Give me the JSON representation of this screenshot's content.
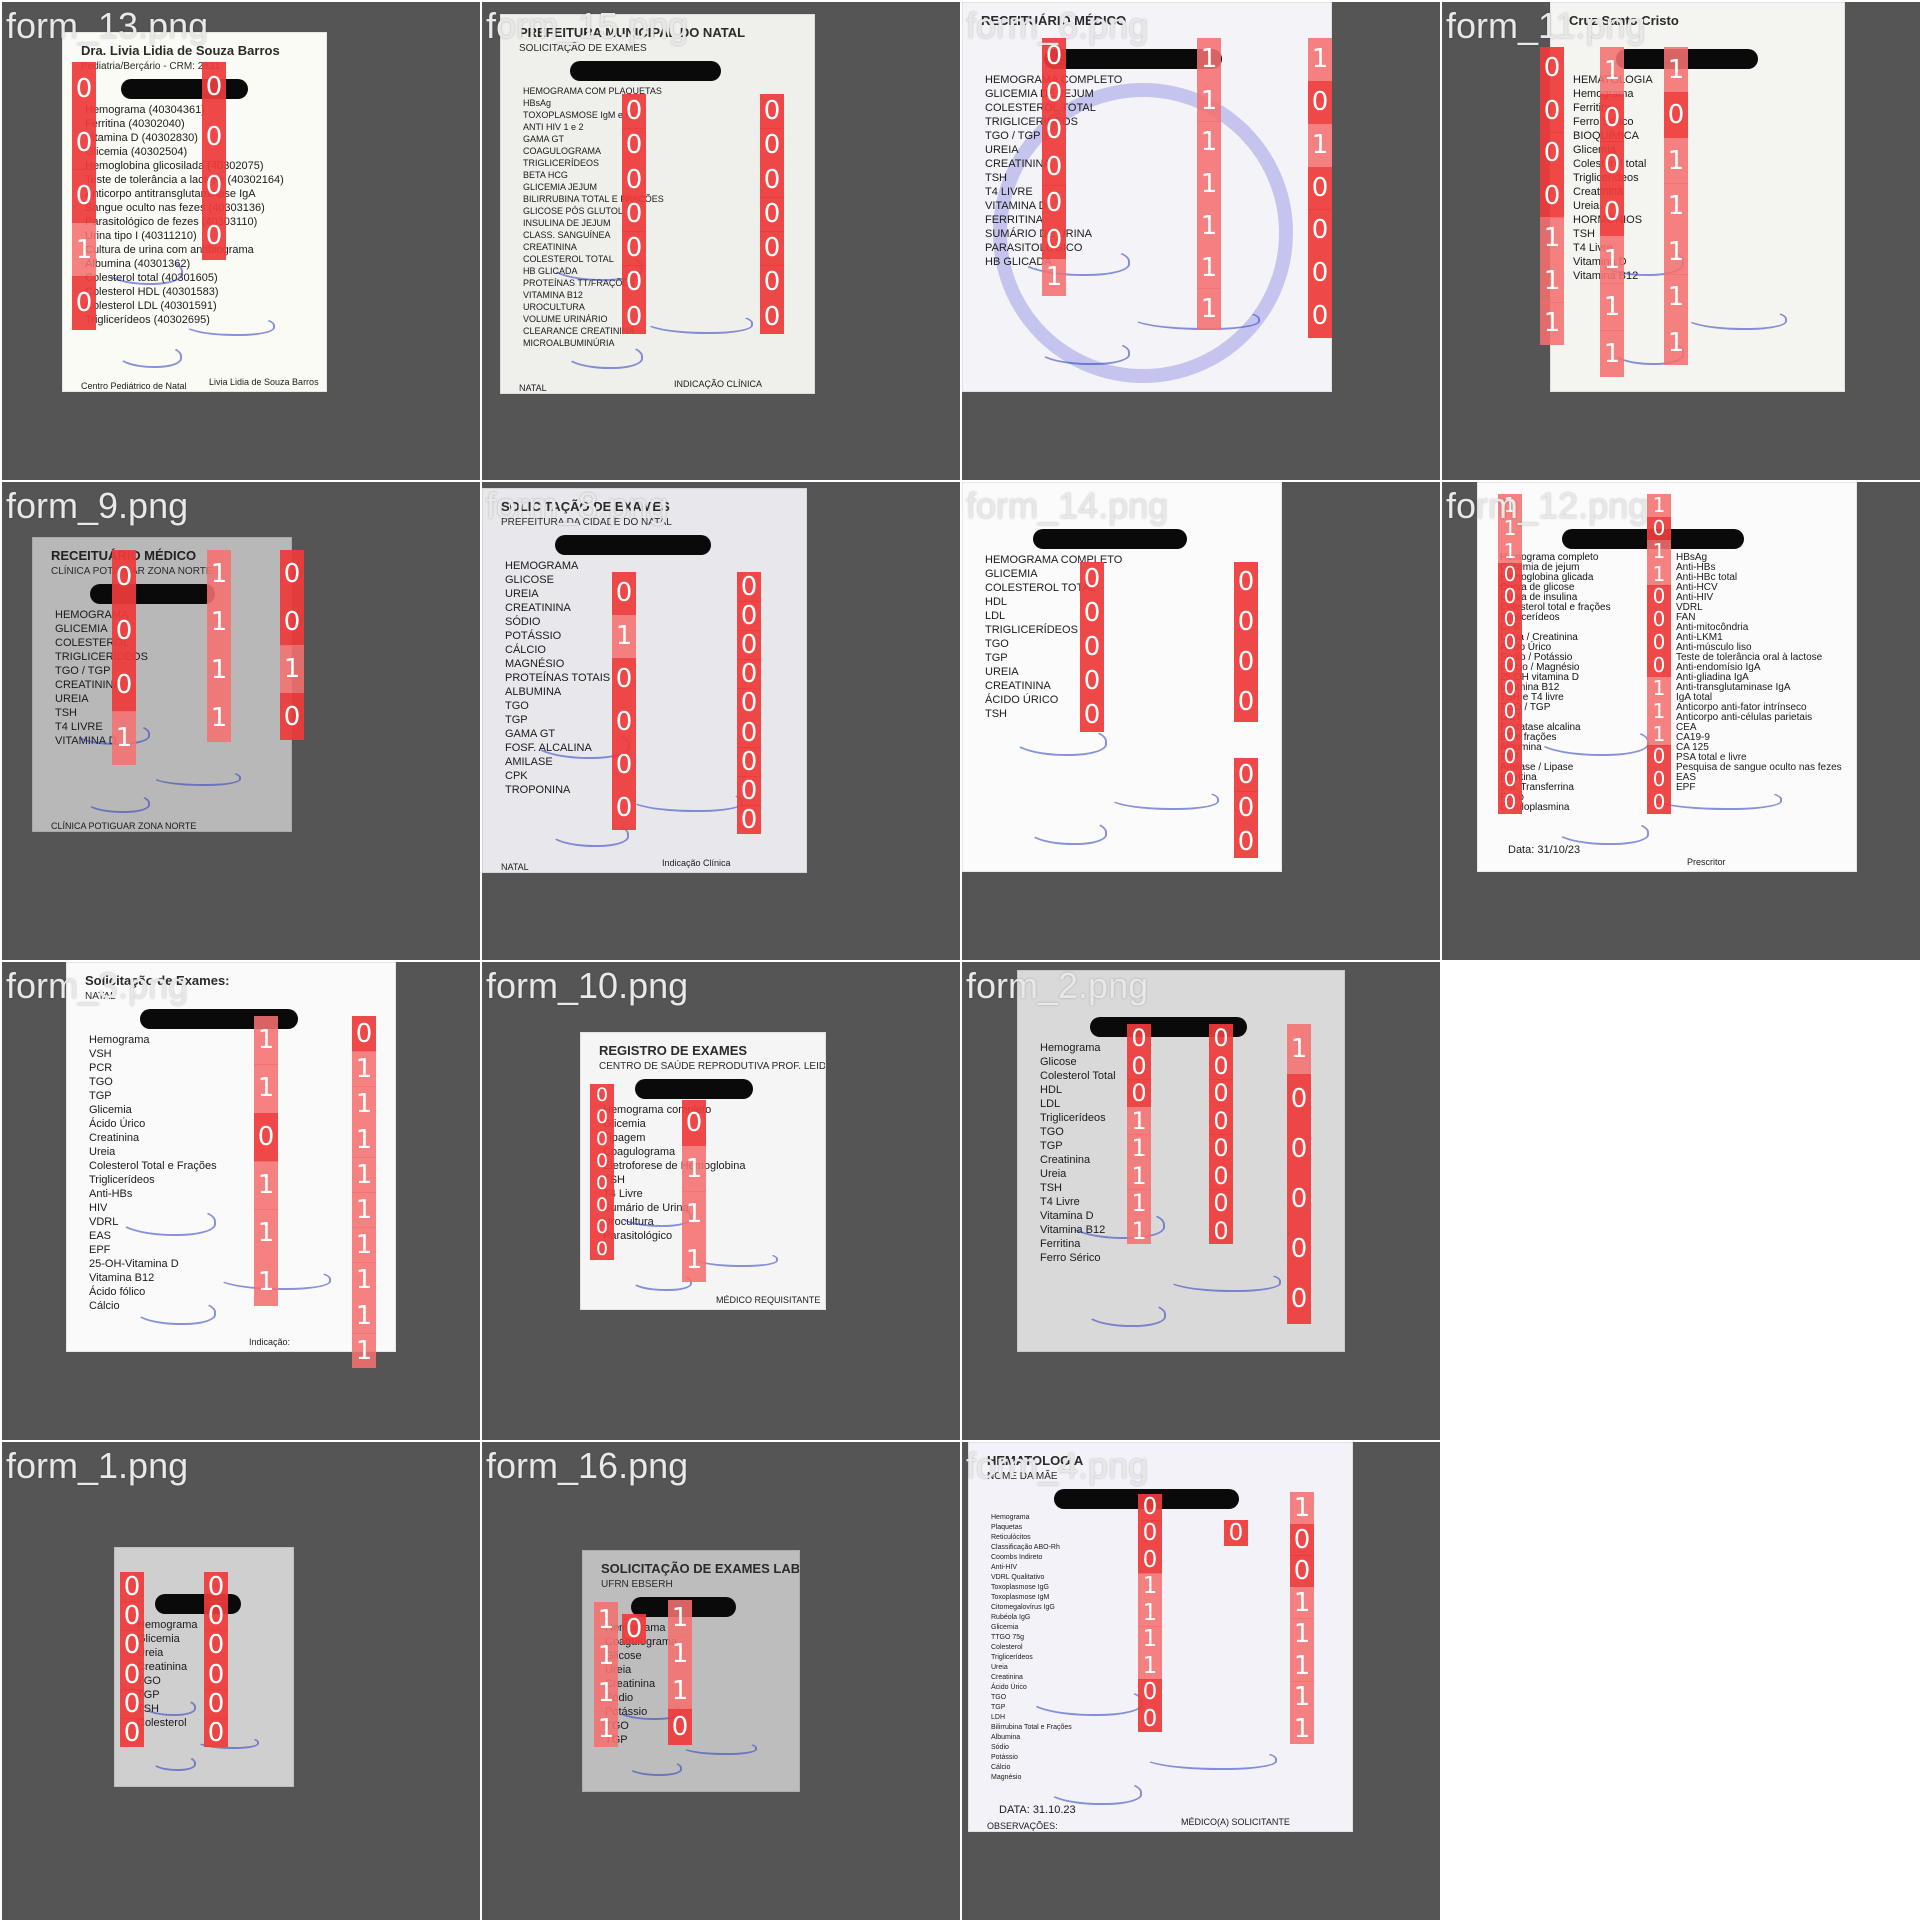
{
  "tiles": [
    {
      "title": "form_13.png",
      "doc": {
        "header": "Dra. Livia Lidia de Souza Barros",
        "subheader": "Pediatria/Berçário - CRM: 2631",
        "lines": [
          "Hemograma (40304361)",
          "Ferritina (40302040)",
          "Vitamina D (40302830)",
          "Glicemia (40302504)",
          "Hemoglobina glicosilada (40302075)",
          "Teste de tolerância a lactose (40302164)",
          "Anticorpo antitransglutaminase IgA",
          "Sangue oculto nas fezes (40303136)",
          "Parasitológico de fezes (40303110)",
          "Urina tipo I (40311210)",
          "Cultura de urina com antibiograma",
          "Albumina (40301362)",
          "Colesterol total (40301605)",
          "Colesterol HDL (40301583)",
          "Colesterol LDL (40301591)",
          "Triglicerídeos (40302695)"
        ],
        "signature": "Livia Lidia de Souza Barros",
        "footer": "Centro Pediátrico de Natal"
      },
      "columns": [
        {
          "cells": [
            "0",
            "0",
            "0",
            "1",
            "0"
          ]
        },
        {
          "cells": [
            "0",
            "0",
            "0",
            "0"
          ]
        }
      ]
    },
    {
      "title": "form_15.png",
      "doc": {
        "header": "PREFEITURA MUNICIPAL DO NATAL",
        "subheader": "SOLICITAÇÃO DE EXAMES",
        "lines": [
          "HEMOGRAMA COM PLAQUETAS",
          "HBsAg",
          "TOXOPLASMOSE IgM e IgG",
          "ANTI HIV 1 e 2",
          "GAMA GT",
          "COAGULOGRAMA",
          "TRIGLICERÍDEOS",
          "BETA HCG",
          "GLICEMIA JEJUM",
          "BILIRRUBINA TOTAL E FRAÇÕES",
          "GLICOSE PÓS GLUTOL",
          "INSULINA DE JEJUM",
          "CLASS. SANGUÍNEA",
          "CREATININA",
          "COLESTEROL TOTAL",
          "HB GLICADA",
          "PROTEÍNAS TT/FRAÇÕES",
          "VITAMINA B12",
          "UROCULTURA",
          "VOLUME URINÁRIO",
          "CLEARANCE CREATININA",
          "MICROALBUMINÚRIA"
        ],
        "signature": "INDICAÇÃO CLÍNICA",
        "footer": "NATAL"
      },
      "columns": [
        {
          "cells": [
            "0",
            "0",
            "0",
            "0",
            "0",
            "0",
            "0"
          ]
        },
        {
          "cells": [
            "0",
            "0",
            "0",
            "0",
            "0",
            "0",
            "0"
          ]
        }
      ]
    },
    {
      "title": "form_6.png",
      "doc": {
        "header": "RECEITUÁRIO MÉDICO",
        "subheader": "",
        "lines": [
          "HEMOGRAMA COMPLETO",
          "GLICEMIA DE JEJUM",
          "COLESTEROL TOTAL",
          "TRIGLICERÍDEOS",
          "TGO / TGP",
          "UREIA",
          "CREATININA",
          "TSH",
          "T4 LIVRE",
          "VITAMINA D",
          "FERRITINA",
          "SUMÁRIO DE URINA",
          "PARASITOLÓGICO",
          "HB GLICADA"
        ],
        "signature": "",
        "footer": ""
      },
      "columns": [
        {
          "cells": [
            "0",
            "0",
            "0",
            "0",
            "0",
            "0",
            "1"
          ]
        },
        {
          "cells": [
            "1",
            "1",
            "1",
            "1",
            "1",
            "1",
            "1"
          ]
        },
        {
          "cells": [
            "1",
            "0",
            "1",
            "0",
            "0",
            "0",
            "0"
          ]
        }
      ]
    },
    {
      "title": "form_11.png",
      "doc": {
        "header": "Cruz Santo Cristo",
        "subheader": "",
        "lines": [
          "HEMATOLOGIA",
          "Hemograma",
          "Ferritina",
          "Ferro Sérico",
          "BIOQUÍMICA",
          "Glicemia",
          "Colesterol total",
          "Triglicerídeos",
          "Creatinina",
          "Ureia",
          "HORMÔNIOS",
          "TSH",
          "T4 Livre",
          "Vitamina D",
          "Vitamina B12"
        ],
        "signature": "",
        "footer": ""
      },
      "columns": [
        {
          "cells": [
            "0",
            "0",
            "0",
            "0",
            "1",
            "1",
            "1"
          ]
        },
        {
          "cells": [
            "1",
            "0",
            "0",
            "0",
            "1",
            "1",
            "1"
          ]
        },
        {
          "cells": [
            "1",
            "0",
            "1",
            "1",
            "1",
            "1",
            "1"
          ]
        }
      ]
    },
    {
      "title": "form_9.png",
      "doc": {
        "header": "RECEITUÁRIO MÉDICO",
        "subheader": "CLÍNICA POTIGUAR ZONA NORTE",
        "lines": [
          "HEMOGRAMA",
          "GLICEMIA",
          "COLESTEROL",
          "TRIGLICERÍDEOS",
          "TGO / TGP",
          "CREATININA",
          "UREIA",
          "TSH",
          "T4 LIVRE",
          "VITAMINA D"
        ],
        "signature": "",
        "footer": "CLÍNICA POTIGUAR ZONA NORTE"
      },
      "columns": [
        {
          "cells": [
            "0",
            "0",
            "0",
            "1"
          ]
        },
        {
          "cells": [
            "1",
            "1",
            "1",
            "1"
          ]
        },
        {
          "cells": [
            "0",
            "0",
            "1",
            "0"
          ]
        }
      ]
    },
    {
      "title": "form_8.png",
      "doc": {
        "header": "SOLICITAÇÃO DE EXAMES",
        "subheader": "PREFEITURA DA CIDADE DO NATAL",
        "lines": [
          "HEMOGRAMA",
          "GLICOSE",
          "UREIA",
          "CREATININA",
          "SÓDIO",
          "POTÁSSIO",
          "CÁLCIO",
          "MAGNÉSIO",
          "PROTEÍNAS TOTAIS",
          "ALBUMINA",
          "TGO",
          "TGP",
          "GAMA GT",
          "FOSF. ALCALINA",
          "AMILASE",
          "CPK",
          "TROPONINA"
        ],
        "signature": "Indicação Clínica",
        "footer": "NATAL"
      },
      "columns": [
        {
          "cells": [
            "0",
            "1",
            "0",
            "0",
            "0",
            "0"
          ]
        },
        {
          "cells": [
            "0",
            "0",
            "0",
            "0",
            "0",
            "0",
            "0",
            "0",
            "0"
          ]
        }
      ]
    },
    {
      "title": "form_14.png",
      "doc": {
        "header": "",
        "subheader": "",
        "lines": [
          "HEMOGRAMA COMPLETO",
          "GLICEMIA",
          "COLESTEROL TOTAL",
          "HDL",
          "LDL",
          "TRIGLICERÍDEOS",
          "TGO",
          "TGP",
          "UREIA",
          "CREATININA",
          "ÁCIDO ÚRICO",
          "TSH"
        ],
        "signature": "",
        "footer": ""
      },
      "columns": [
        {
          "cells": [
            "0",
            "0",
            "0",
            "0",
            "0"
          ]
        },
        {
          "cells": [
            "0",
            "0",
            "0",
            "0"
          ]
        },
        {
          "cells": [
            "0",
            "0",
            "0"
          ]
        }
      ]
    },
    {
      "title": "form_12.png",
      "doc": {
        "header": "",
        "subheader": "",
        "lines": [
          "Hemograma completo",
          "Glicemia de jejum",
          "Hemoglobina glicada",
          "Curva de glicose",
          "Curva de insulina",
          "Colesterol total e frações",
          "Triglicerídeos",
          "CPK",
          "Uréia / Creatinina",
          "Ácido Úrico",
          "Sódio / Potássio",
          "Cálcio / Magnésio",
          "25 OH vitamina D",
          "Vitamina B12",
          "TSH e T4 livre",
          "TGO / TGP",
          "GGT",
          "Fosfatase alcalina",
          "BT e frações",
          "Albumina",
          "TAP",
          "Amilase / Lipase",
          "Ferritina",
          "Sat. Transferrina",
          "Ferro",
          "Ceruloplasmina"
        ],
        "lines2": [
          "HBsAg",
          "Anti-HBs",
          "Anti-HBc total",
          "Anti-HCV",
          "Anti-HIV",
          "VDRL",
          "FAN",
          "Anti-mitocôndria",
          "Anti-LKM1",
          "Anti-músculo liso",
          "Teste de tolerância oral à lactose",
          "Anti-endomísio IgA",
          "Anti-gliadina IgA",
          "Anti-transglutaminase IgA",
          "IgA total",
          "Anticorpo anti-fator intrínseco",
          "Anticorpo anti-células parietais",
          "CEA",
          "CA19-9",
          "CA 125",
          "PSA total e livre",
          "Pesquisa de sangue oculto nas fezes",
          "EAS",
          "EPF"
        ],
        "date": "Data: 31/10/23",
        "signature": "Prescritor",
        "footer": ""
      },
      "columns": [
        {
          "cells": [
            "1",
            "1",
            "1",
            "0",
            "0",
            "0",
            "0",
            "0",
            "0",
            "0",
            "0",
            "0",
            "0",
            "0"
          ]
        },
        {
          "cells": [
            "1",
            "0",
            "1",
            "1",
            "0",
            "0",
            "0",
            "0",
            "1",
            "1",
            "1",
            "0",
            "0",
            "0"
          ]
        }
      ]
    },
    {
      "title": "form_3.png",
      "doc": {
        "header": "Solicitação de Exames:",
        "subheader": "NATAL",
        "lines": [
          "Hemograma",
          "VSH",
          "PCR",
          "TGO",
          "TGP",
          "Glicemia",
          "Ácido Úrico",
          "Creatinina",
          "Ureia",
          "Colesterol Total e Frações",
          "Triglicerídeos",
          "Anti-HBs",
          "HIV",
          "VDRL",
          "EAS",
          "EPF",
          "25-OH-Vitamina D",
          "Vitamina B12",
          "Ácido fólico",
          "Cálcio"
        ],
        "signature": "Indicação:",
        "footer": ""
      },
      "columns": [
        {
          "cells": [
            "1",
            "1",
            "0",
            "1",
            "1",
            "1"
          ]
        },
        {
          "cells": [
            "0",
            "1",
            "1",
            "1",
            "1",
            "1",
            "1",
            "1",
            "1",
            "1"
          ]
        }
      ]
    },
    {
      "title": "form_10.png",
      "doc": {
        "header": "REGISTRO DE EXAMES",
        "subheader": "CENTRO DE SAÚDE REPRODUTIVA PROF. LEIDE MORAIS",
        "lines": [
          "Hemograma completo",
          "Glicemia",
          "Tipagem",
          "Coagulograma",
          "Eletroforese de Hemoglobina",
          "TSH",
          "T4 Livre",
          "Sumário de Urina",
          "Urocultura",
          "Parasitológico"
        ],
        "signature": "MÉDICO REQUISITANTE",
        "footer": ""
      },
      "columns": [
        {
          "cells": [
            "0",
            "0",
            "0",
            "0",
            "0",
            "0",
            "0",
            "0"
          ]
        },
        {
          "cells": [
            "0",
            "1",
            "1",
            "1"
          ]
        }
      ]
    },
    {
      "title": "form_2.png",
      "doc": {
        "header": "",
        "subheader": "",
        "lines": [
          "Hemograma",
          "Glicose",
          "Colesterol Total",
          "HDL",
          "LDL",
          "Triglicerídeos",
          "TGO",
          "TGP",
          "Creatinina",
          "Ureia",
          "TSH",
          "T4 Livre",
          "Vitamina D",
          "Vitamina B12",
          "Ferritina",
          "Ferro Sérico"
        ],
        "signature": "",
        "footer": ""
      },
      "columns": [
        {
          "cells": [
            "0",
            "0",
            "0",
            "1",
            "1",
            "1",
            "1",
            "1"
          ]
        },
        {
          "cells": [
            "0",
            "0",
            "0",
            "0",
            "0",
            "0",
            "0",
            "0"
          ]
        },
        {
          "cells": [
            "1",
            "0",
            "0",
            "0",
            "0",
            "0"
          ]
        }
      ]
    },
    {
      "title": "",
      "empty": true,
      "doc": null,
      "columns": []
    },
    {
      "title": "form_1.png",
      "doc": {
        "header": "",
        "subheader": "",
        "lines": [
          "Hemograma",
          "Glicemia",
          "Ureia",
          "Creatinina",
          "TGO",
          "TGP",
          "TSH",
          "Colesterol"
        ],
        "signature": "",
        "footer": ""
      },
      "columns": [
        {
          "cells": [
            "0",
            "0",
            "0",
            "0",
            "0",
            "0"
          ]
        },
        {
          "cells": [
            "0",
            "0",
            "0",
            "0",
            "0",
            "0"
          ]
        }
      ]
    },
    {
      "title": "form_16.png",
      "doc": {
        "header": "SOLICITAÇÃO DE EXAMES LABORATORIAIS",
        "subheader": "UFRN EBSERH",
        "lines": [
          "Hemograma",
          "Coagulograma",
          "Glicose",
          "Ureia",
          "Creatinina",
          "Sódio",
          "Potássio",
          "TGO",
          "TGP"
        ],
        "signature": "",
        "footer": ""
      },
      "columns": [
        {
          "cells": [
            "1",
            "1",
            "1",
            "1"
          ]
        },
        {
          "cells": [
            "0"
          ]
        },
        {
          "cells": [
            "1",
            "1",
            "1",
            "0"
          ]
        }
      ]
    },
    {
      "title": "form_4.png",
      "doc": {
        "header": "HEMATOLOGIA",
        "subheader": "NOME DA MÃE",
        "lines": [
          "Hemograma",
          "Plaquetas",
          "Reticulócitos",
          "Classificação ABO-Rh",
          "Coombs Indireto",
          "Anti-HIV",
          "VDRL Qualitativo",
          "Toxoplasmose IgG",
          "Toxoplasmose IgM",
          "Citomegalovírus IgG",
          "Rubéola IgG",
          "Glicemia",
          "TTGO 75g",
          "Colesterol",
          "Triglicerídeos",
          "Ureia",
          "Creatinina",
          "Ácido Úrico",
          "TGO",
          "TGP",
          "LDH",
          "Bilirrubina Total e Frações",
          "Albumina",
          "Sódio",
          "Potássio",
          "Cálcio",
          "Magnésio"
        ],
        "date": "DATA: 31.10.23",
        "signature": "MÉDICO(A) SOLICITANTE",
        "footer": "OBSERVAÇÕES:"
      },
      "columns": [
        {
          "cells": [
            "0",
            "0",
            "0",
            "1",
            "1",
            "1",
            "1",
            "0",
            "0"
          ]
        },
        {
          "cells": [
            "0"
          ]
        },
        {
          "cells": [
            "1",
            "0",
            "0",
            "1",
            "1",
            "1",
            "1",
            "1"
          ]
        }
      ]
    },
    {
      "title": "",
      "empty": true,
      "doc": null,
      "columns": []
    }
  ]
}
